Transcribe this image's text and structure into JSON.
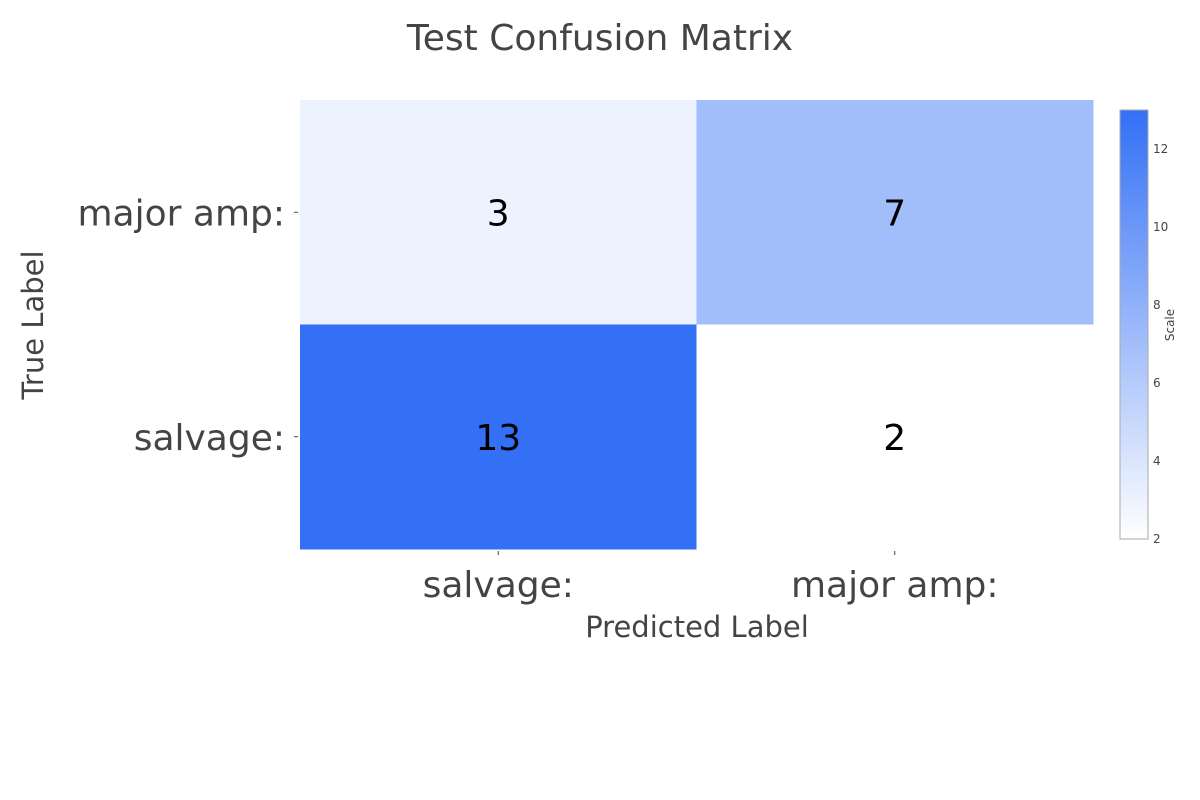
{
  "chart_data": {
    "type": "heatmap",
    "title": "Test Confusion Matrix",
    "xlabel": "Predicted Label",
    "ylabel": "True Label",
    "x_categories": [
      "salvage:",
      "major amp:"
    ],
    "y_categories_top_to_bottom": [
      "major amp:",
      "salvage:"
    ],
    "z_top_to_bottom": [
      [
        3,
        7
      ],
      [
        13,
        2
      ]
    ],
    "colorbar": {
      "title": "Scale",
      "range": [
        2,
        13
      ],
      "ticks": [
        "2",
        "4",
        "6",
        "8",
        "10",
        "12"
      ],
      "color_low": "#ffffff",
      "color_high": "#3370f5"
    },
    "grid": false
  }
}
